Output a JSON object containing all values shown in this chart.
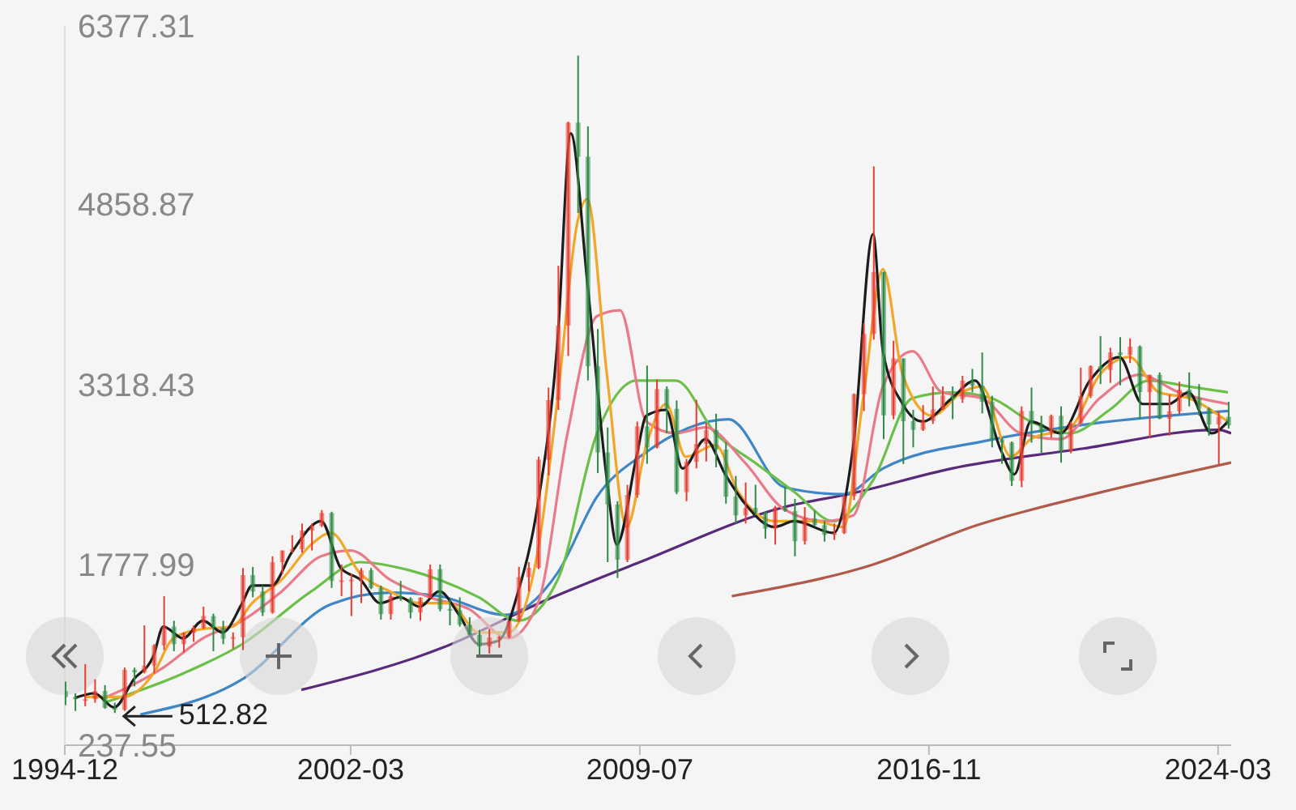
{
  "chart_data": {
    "type": "candlestick",
    "xlim": [
      "1994-12",
      "2024-07"
    ],
    "xticks": [
      "1994-12",
      "2002-03",
      "2009-07",
      "2016-11",
      "2024-03"
    ],
    "ylim": [
      237.55,
      6377.31
    ],
    "yticks": [
      237.55,
      1777.99,
      3318.43,
      4858.87,
      6377.31
    ],
    "grid": false,
    "annotations": [
      {
        "text": "512.82",
        "x": "1996-03",
        "y": 512.82
      }
    ],
    "series": [
      {
        "x": [
          "1994-12",
          "1995-03",
          "1995-06",
          "1995-09",
          "1995-12",
          "1996-03",
          "1996-06",
          "1996-09",
          "1996-12",
          "1997-03",
          "1997-06",
          "1997-09",
          "1997-12",
          "1998-03",
          "1998-06",
          "1998-09",
          "1998-12",
          "1999-03",
          "1999-06",
          "1999-09",
          "1999-12",
          "2000-03",
          "2000-06",
          "2000-09",
          "2000-12",
          "2001-03",
          "2001-06",
          "2001-09",
          "2001-12",
          "2002-03",
          "2002-06",
          "2002-09",
          "2002-12",
          "2003-03",
          "2003-06",
          "2003-09",
          "2003-12",
          "2004-03",
          "2004-06",
          "2004-09",
          "2004-12",
          "2005-03",
          "2005-06",
          "2005-09",
          "2005-12",
          "2006-03",
          "2006-06",
          "2006-09",
          "2006-12",
          "2007-03",
          "2007-06",
          "2007-09",
          "2007-12",
          "2008-03",
          "2008-06",
          "2008-09",
          "2008-12",
          "2009-03",
          "2009-06",
          "2009-09",
          "2009-12",
          "2010-03",
          "2010-06",
          "2010-09",
          "2010-12",
          "2011-03",
          "2011-06",
          "2011-09",
          "2011-12",
          "2012-03",
          "2012-06",
          "2012-09",
          "2012-12",
          "2013-03",
          "2013-06",
          "2013-09",
          "2013-12",
          "2014-03",
          "2014-06",
          "2014-09",
          "2014-12",
          "2015-03",
          "2015-06",
          "2015-09",
          "2015-12",
          "2016-03",
          "2016-06",
          "2016-09",
          "2016-12",
          "2017-03",
          "2017-06",
          "2017-09",
          "2017-12",
          "2018-03",
          "2018-06",
          "2018-09",
          "2018-12",
          "2019-03",
          "2019-06",
          "2019-09",
          "2019-12",
          "2020-03",
          "2020-06",
          "2020-09",
          "2020-12",
          "2021-03",
          "2021-06",
          "2021-09",
          "2021-12",
          "2022-03",
          "2022-06",
          "2022-09",
          "2022-12",
          "2023-03",
          "2023-06",
          "2023-09",
          "2023-12",
          "2024-03",
          "2024-06"
        ],
        "ohlc": [
          [
            700,
            780,
            580,
            648
          ],
          [
            648,
            680,
            530,
            630
          ],
          [
            630,
            930,
            570,
            630
          ],
          [
            630,
            800,
            600,
            700
          ],
          [
            700,
            750,
            550,
            555
          ],
          [
            555,
            600,
            512.82,
            540
          ],
          [
            540,
            900,
            530,
            880
          ],
          [
            880,
            900,
            740,
            860
          ],
          [
            860,
            1260,
            850,
            917
          ],
          [
            917,
            1100,
            850,
            1090
          ],
          [
            1090,
            1510,
            1050,
            1250
          ],
          [
            1250,
            1300,
            1040,
            1100
          ],
          [
            1100,
            1200,
            1030,
            1195
          ],
          [
            1195,
            1260,
            1120,
            1240
          ],
          [
            1240,
            1420,
            1230,
            1340
          ],
          [
            1340,
            1360,
            1040,
            1240
          ],
          [
            1240,
            1300,
            1100,
            1146
          ],
          [
            1146,
            1200,
            1060,
            1160
          ],
          [
            1160,
            1750,
            1050,
            1690
          ],
          [
            1690,
            1760,
            1500,
            1550
          ],
          [
            1550,
            1600,
            1340,
            1370
          ],
          [
            1370,
            1850,
            1360,
            1800
          ],
          [
            1800,
            1900,
            1700,
            1900
          ],
          [
            1900,
            2030,
            1880,
            1910
          ],
          [
            1910,
            2130,
            1880,
            2070
          ],
          [
            2070,
            2130,
            1900,
            2110
          ],
          [
            2110,
            2245,
            2100,
            2220
          ],
          [
            2220,
            2230,
            1580,
            1640
          ],
          [
            1640,
            1780,
            1510,
            1645
          ],
          [
            1645,
            1700,
            1340,
            1650
          ],
          [
            1650,
            1750,
            1450,
            1730
          ],
          [
            1730,
            1750,
            1570,
            1580
          ],
          [
            1580,
            1600,
            1310,
            1357
          ],
          [
            1357,
            1530,
            1310,
            1510
          ],
          [
            1510,
            1640,
            1470,
            1490
          ],
          [
            1490,
            1500,
            1320,
            1370
          ],
          [
            1370,
            1500,
            1300,
            1497
          ],
          [
            1497,
            1780,
            1490,
            1740
          ],
          [
            1740,
            1780,
            1380,
            1400
          ],
          [
            1400,
            1480,
            1260,
            1390
          ],
          [
            1390,
            1500,
            1250,
            1266
          ],
          [
            1266,
            1330,
            1180,
            1180
          ],
          [
            1180,
            1220,
            998,
            1080
          ],
          [
            1080,
            1230,
            1020,
            1155
          ],
          [
            1155,
            1170,
            1070,
            1161
          ],
          [
            1161,
            1300,
            1150,
            1300
          ],
          [
            1300,
            1760,
            1290,
            1672
          ],
          [
            1672,
            1800,
            1550,
            1752
          ],
          [
            1752,
            2700,
            1740,
            2675
          ],
          [
            2675,
            3290,
            2540,
            3183
          ],
          [
            3183,
            4330,
            3100,
            3820
          ],
          [
            3820,
            5560,
            3560,
            5552
          ],
          [
            5552,
            6124,
            4780,
            5261
          ],
          [
            5261,
            5520,
            3350,
            3472
          ],
          [
            3472,
            3790,
            2560,
            2736
          ],
          [
            2736,
            2950,
            1800,
            2293
          ],
          [
            2293,
            2320,
            1665,
            1820
          ],
          [
            1820,
            2460,
            1800,
            2373
          ],
          [
            2373,
            3000,
            2350,
            2959
          ],
          [
            2959,
            3478,
            2640,
            2779
          ],
          [
            2779,
            3360,
            2770,
            3277
          ],
          [
            3277,
            3300,
            2900,
            3109
          ],
          [
            3109,
            3180,
            2380,
            2398
          ],
          [
            2398,
            2680,
            2320,
            2656
          ],
          [
            2656,
            3186,
            2600,
            2808
          ],
          [
            2808,
            2990,
            2660,
            2928
          ],
          [
            2928,
            3067,
            2610,
            2762
          ],
          [
            2762,
            2826,
            2300,
            2359
          ],
          [
            2359,
            2536,
            2130,
            2199
          ],
          [
            2199,
            2480,
            2130,
            2263
          ],
          [
            2263,
            2460,
            2200,
            2225
          ],
          [
            2225,
            2230,
            2000,
            2086
          ],
          [
            2086,
            2280,
            1950,
            2269
          ],
          [
            2269,
            2445,
            2230,
            2237
          ],
          [
            2237,
            2340,
            1850,
            1979
          ],
          [
            1979,
            2270,
            1950,
            2174
          ],
          [
            2174,
            2240,
            2110,
            2116
          ],
          [
            2116,
            2150,
            1975,
            2033
          ],
          [
            2033,
            2130,
            1990,
            2048
          ],
          [
            2048,
            2370,
            2040,
            2364
          ],
          [
            2364,
            3240,
            2330,
            3234
          ],
          [
            3234,
            3840,
            3090,
            3748
          ],
          [
            3748,
            5178,
            3700,
            4277
          ],
          [
            4277,
            4280,
            2850,
            3053
          ],
          [
            3053,
            3690,
            3020,
            3539
          ],
          [
            3539,
            3540,
            2638,
            3003
          ],
          [
            3003,
            3100,
            2780,
            2930
          ],
          [
            2930,
            3140,
            2920,
            3005
          ],
          [
            3005,
            3300,
            2980,
            3104
          ],
          [
            3104,
            3300,
            3100,
            3223
          ],
          [
            3223,
            3300,
            3020,
            3192
          ],
          [
            3192,
            3390,
            3160,
            3349
          ],
          [
            3349,
            3450,
            3250,
            3307
          ],
          [
            3307,
            3590,
            3070,
            3169
          ],
          [
            3169,
            3220,
            2780,
            2847
          ],
          [
            2847,
            2860,
            2640,
            2821
          ],
          [
            2821,
            2830,
            2450,
            2494
          ],
          [
            2494,
            3130,
            2440,
            3091
          ],
          [
            3091,
            3290,
            2820,
            2979
          ],
          [
            2979,
            3050,
            2730,
            2905
          ],
          [
            2905,
            3060,
            2860,
            3050
          ],
          [
            3050,
            3130,
            2650,
            2750
          ],
          [
            2750,
            3000,
            2730,
            2985
          ],
          [
            2985,
            3460,
            2980,
            3218
          ],
          [
            3218,
            3480,
            3200,
            3473
          ],
          [
            3473,
            3730,
            3320,
            3441
          ],
          [
            3441,
            3630,
            3330,
            3591
          ],
          [
            3591,
            3720,
            3310,
            3568
          ],
          [
            3568,
            3710,
            3500,
            3640
          ],
          [
            3640,
            3650,
            3020,
            3252
          ],
          [
            3252,
            3400,
            2860,
            3399
          ],
          [
            3399,
            3420,
            3020,
            3024
          ],
          [
            3024,
            3230,
            2880,
            3089
          ],
          [
            3089,
            3340,
            3060,
            3273
          ],
          [
            3273,
            3420,
            3130,
            3202
          ],
          [
            3202,
            3320,
            3050,
            3110
          ],
          [
            3110,
            3120,
            2880,
            2975
          ],
          [
            2975,
            3090,
            2635,
            3041
          ],
          [
            3041,
            3170,
            2940,
            2967
          ]
        ],
        "colors": [
          "#2e8b46",
          "#2e8b46",
          "#e53e30",
          "#e53e30",
          "#2e8b46",
          "#2e8b46",
          "#e53e30",
          "#2e8b46",
          "#e53e30",
          "#e53e30",
          "#e53e30",
          "#2e8b46",
          "#e53e30",
          "#e53e30",
          "#e53e30",
          "#2e8b46",
          "#2e8b46",
          "#e53e30",
          "#e53e30",
          "#2e8b46",
          "#2e8b46",
          "#e53e30",
          "#e53e30",
          "#e53e30",
          "#e53e30",
          "#e53e30",
          "#e53e30",
          "#2e8b46",
          "#e53e30",
          "#e53e30",
          "#e53e30",
          "#2e8b46",
          "#2e8b46",
          "#e53e30",
          "#2e8b46",
          "#2e8b46",
          "#e53e30",
          "#e53e30",
          "#2e8b46",
          "#2e8b46",
          "#2e8b46",
          "#2e8b46",
          "#2e8b46",
          "#e53e30",
          "#e53e30",
          "#e53e30",
          "#e53e30",
          "#e53e30",
          "#e53e30",
          "#e53e30",
          "#e53e30",
          "#e53e30",
          "#2e8b46",
          "#2e8b46",
          "#2e8b46",
          "#2e8b46",
          "#2e8b46",
          "#e53e30",
          "#e53e30",
          "#2e8b46",
          "#e53e30",
          "#2e8b46",
          "#2e8b46",
          "#e53e30",
          "#e53e30",
          "#e53e30",
          "#2e8b46",
          "#2e8b46",
          "#2e8b46",
          "#e53e30",
          "#2e8b46",
          "#2e8b46",
          "#e53e30",
          "#2e8b46",
          "#2e8b46",
          "#e53e30",
          "#2e8b46",
          "#2e8b46",
          "#e53e30",
          "#e53e30",
          "#e53e30",
          "#e53e30",
          "#e53e30",
          "#2e8b46",
          "#e53e30",
          "#2e8b46",
          "#2e8b46",
          "#e53e30",
          "#e53e30",
          "#e53e30",
          "#2e8b46",
          "#e53e30",
          "#2e8b46",
          "#2e8b46",
          "#2e8b46",
          "#2e8b46",
          "#2e8b46",
          "#e53e30",
          "#2e8b46",
          "#2e8b46",
          "#e53e30",
          "#2e8b46",
          "#e53e30",
          "#e53e30",
          "#e53e30",
          "#2e8b46",
          "#e53e30",
          "#2e8b46",
          "#e53e30",
          "#2e8b46",
          "#e53e30",
          "#2e8b46",
          "#e53e30",
          "#e53e30",
          "#2e8b46",
          "#2e8b46",
          "#2e8b46",
          "#e53e30",
          "#2e8b46"
        ]
      },
      {
        "type": "line",
        "color": "#5a2a7a",
        "x": [
          "2000-12",
          "2004-07",
          "2007-02",
          "2009-07",
          "2013-03",
          "2014-12",
          "2017-06",
          "2020-10",
          "2024-03",
          "2024-07"
        ],
        "values": [
          710,
          1070,
          1470,
          1800,
          2270,
          2390,
          2600,
          2770,
          2930,
          2900
        ]
      },
      {
        "type": "line",
        "color": "#b05a4a",
        "x": [
          "2011-11",
          "2015-06",
          "2018-01",
          "2021-01",
          "2024-07"
        ],
        "values": [
          1510,
          1780,
          2110,
          2380,
          2650
        ]
      },
      {
        "type": "line",
        "color": "#3f86c6",
        "x": [
          "1996-11",
          "1999-06",
          "2001-09",
          "2003-03",
          "2004-06",
          "2006-02",
          "2007-06",
          "2008-06",
          "2009-08",
          "2011-10",
          "2013-03",
          "2014-09",
          "2015-09",
          "2018-05",
          "2020-12",
          "2024-06"
        ],
        "values": [
          500,
          800,
          1440,
          1540,
          1510,
          1350,
          1710,
          2360,
          2720,
          3020,
          2440,
          2380,
          2600,
          2840,
          2980,
          3090
        ]
      },
      {
        "type": "line",
        "color": "#6cc04a",
        "x": [
          "1995-12",
          "1997-12",
          "1999-06",
          "2001-03",
          "2002-06",
          "2003-06",
          "2004-06",
          "2005-06",
          "2006-06",
          "2007-06",
          "2008-06",
          "2009-06",
          "2010-06",
          "2011-06",
          "2012-06",
          "2013-06",
          "2014-06",
          "2015-06",
          "2016-06",
          "2017-06",
          "2018-06",
          "2019-06",
          "2020-06",
          "2021-06",
          "2022-06",
          "2023-06",
          "2024-06"
        ],
        "values": [
          600,
          850,
          1100,
          1550,
          1800,
          1750,
          1650,
          1500,
          1300,
          1650,
          2900,
          3350,
          3350,
          2900,
          2650,
          2400,
          2150,
          2500,
          3200,
          3250,
          3200,
          3000,
          2900,
          3100,
          3350,
          3300,
          3250
        ]
      },
      {
        "type": "line",
        "color": "#ea7a8a",
        "x": [
          "1995-12",
          "1997-06",
          "1998-06",
          "1999-06",
          "2000-06",
          "2001-06",
          "2002-03",
          "2003-03",
          "2004-03",
          "2005-03",
          "2006-03",
          "2006-12",
          "2007-09",
          "2008-06",
          "2009-01",
          "2009-09",
          "2010-06",
          "2011-03",
          "2012-03",
          "2013-03",
          "2014-03",
          "2014-12",
          "2015-09",
          "2016-06",
          "2017-03",
          "2018-03",
          "2019-03",
          "2020-03",
          "2021-03",
          "2022-03",
          "2023-03",
          "2024-06"
        ],
        "values": [
          640,
          900,
          1150,
          1300,
          1550,
          1850,
          1900,
          1650,
          1500,
          1400,
          1150,
          1450,
          2900,
          3900,
          3950,
          3000,
          2900,
          2950,
          2650,
          2250,
          2150,
          2200,
          3300,
          3600,
          3250,
          3200,
          2900,
          2850,
          3200,
          3400,
          3250,
          3150
        ]
      },
      {
        "type": "line",
        "color": "#f2a72a",
        "x": [
          "1995-06",
          "1996-06",
          "1997-03",
          "1997-09",
          "1998-06",
          "1999-03",
          "1999-09",
          "2000-06",
          "2001-03",
          "2001-09",
          "2002-06",
          "2003-03",
          "2003-12",
          "2004-09",
          "2005-06",
          "2006-03",
          "2006-12",
          "2007-06",
          "2007-12",
          "2008-03",
          "2008-09",
          "2009-03",
          "2009-09",
          "2010-03",
          "2010-09",
          "2011-06",
          "2012-01",
          "2012-12",
          "2013-12",
          "2014-09",
          "2015-03",
          "2015-09",
          "2016-03",
          "2016-12",
          "2017-09",
          "2018-03",
          "2018-12",
          "2019-06",
          "2020-06",
          "2021-03",
          "2021-12",
          "2022-09",
          "2023-06",
          "2024-06"
        ],
        "values": [
          650,
          650,
          850,
          1150,
          1230,
          1250,
          1450,
          1650,
          1950,
          2050,
          1700,
          1550,
          1450,
          1450,
          1200,
          1200,
          1900,
          3200,
          4700,
          4900,
          3400,
          2100,
          2800,
          3150,
          2700,
          2800,
          2400,
          2150,
          2150,
          2100,
          3200,
          4300,
          3400,
          3050,
          3250,
          3300,
          2700,
          2850,
          2950,
          3400,
          3550,
          3250,
          3200,
          3000
        ]
      },
      {
        "type": "line",
        "color": "#1c1c1c",
        "x": [
          "1995-03",
          "1995-09",
          "1996-03",
          "1996-09",
          "1997-03",
          "1997-06",
          "1997-12",
          "1998-06",
          "1998-12",
          "1999-06",
          "1999-09",
          "2000-03",
          "2000-09",
          "2001-06",
          "2001-12",
          "2002-06",
          "2002-12",
          "2003-06",
          "2003-12",
          "2004-06",
          "2004-12",
          "2005-06",
          "2005-12",
          "2006-06",
          "2006-12",
          "2007-06",
          "2007-10",
          "2008-03",
          "2008-09",
          "2008-12",
          "2009-06",
          "2009-09",
          "2010-03",
          "2010-08",
          "2011-03",
          "2011-09",
          "2012-03",
          "2012-12",
          "2013-06",
          "2014-06",
          "2014-12",
          "2015-06",
          "2015-09",
          "2016-03",
          "2016-09",
          "2017-06",
          "2018-01",
          "2018-09",
          "2019-01",
          "2019-06",
          "2020-03",
          "2020-12",
          "2021-09",
          "2022-04",
          "2022-12",
          "2023-06",
          "2024-01",
          "2024-06"
        ],
        "values": [
          640,
          680,
          560,
          800,
          1000,
          1250,
          1150,
          1300,
          1200,
          1450,
          1600,
          1600,
          1880,
          2150,
          1750,
          1650,
          1450,
          1500,
          1420,
          1550,
          1350,
          1100,
          1130,
          1550,
          2300,
          3700,
          5460,
          4200,
          2500,
          1950,
          2700,
          3050,
          3100,
          2600,
          2850,
          2550,
          2300,
          2100,
          2150,
          2050,
          2800,
          4600,
          3600,
          3150,
          3000,
          3200,
          3350,
          2750,
          2550,
          3000,
          2900,
          3350,
          3550,
          3150,
          3150,
          3250,
          2900,
          3000
        ]
      }
    ]
  }
}
